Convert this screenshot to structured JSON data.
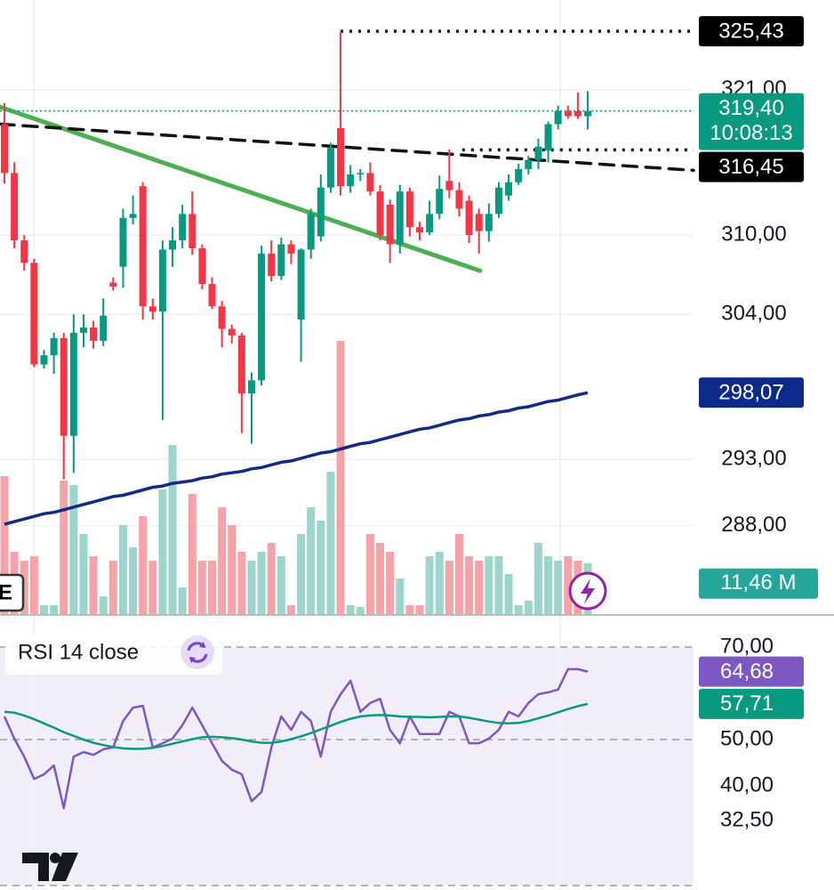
{
  "chart_data": [
    {
      "type": "candlestick",
      "xlim": [
        -0.45,
        69.7
      ],
      "ylim": [
        281.3,
        327.8
      ],
      "yticks": [
        {
          "value": 321,
          "label": "321,00"
        },
        {
          "value": 310,
          "label": "310,00"
        },
        {
          "value": 304,
          "label": "304,00"
        },
        {
          "value": 293,
          "label": "293,00"
        },
        {
          "value": 288,
          "label": "288,00"
        }
      ],
      "grid": true,
      "up_color": "#089981",
      "down_color": "#f23645",
      "open": [
        318.4,
        314.7,
        309.6,
        307.9,
        300.2,
        300.9,
        302.2,
        294.8,
        302.6,
        303.0,
        302.0,
        306.4,
        307.6,
        311.3,
        313.7,
        304.6,
        304.2,
        308.9,
        309.6,
        311.6,
        309.0,
        306.3,
        304.6,
        302.9,
        302.4,
        298.0,
        299.0,
        308.6,
        306.9,
        309.3,
        303.6,
        308.9,
        309.9,
        313.6,
        318.1,
        313.7,
        314.6,
        314.7,
        313.3,
        312.3,
        309.3,
        313.3,
        310.6,
        310.2,
        311.6,
        314.1,
        313.4,
        312.6,
        311.6,
        310.3,
        311.6,
        313.0,
        314.0,
        315.0,
        315.7,
        316.4,
        318.4,
        319.4,
        319.4,
        319.0
      ],
      "high": [
        320.0,
        315.5,
        310.0,
        308.2,
        301.3,
        302.6,
        302.6,
        304.0,
        304.0,
        303.5,
        305.2,
        306.8,
        312.0,
        313.0,
        314.0,
        305.2,
        309.6,
        310.6,
        312.3,
        313.3,
        309.3,
        306.8,
        305.0,
        303.2,
        302.6,
        299.6,
        309.2,
        309.6,
        309.8,
        309.6,
        309.0,
        312.0,
        314.6,
        317.0,
        325.43,
        315.3,
        315.0,
        315.5,
        313.8,
        312.7,
        313.8,
        313.6,
        311.0,
        312.6,
        314.5,
        316.5,
        314.0,
        313.0,
        312.0,
        312.4,
        314.0,
        314.6,
        315.4,
        316.0,
        317.3,
        318.6,
        319.8,
        319.8,
        320.8,
        320.9
      ],
      "low": [
        313.9,
        309.0,
        307.3,
        300.0,
        299.9,
        299.5,
        291.5,
        292.0,
        301.5,
        301.4,
        301.6,
        305.8,
        306.0,
        310.8,
        303.6,
        303.6,
        296.0,
        307.6,
        309.0,
        308.5,
        305.9,
        304.4,
        301.5,
        301.8,
        295.0,
        294.2,
        298.6,
        306.5,
        306.6,
        307.8,
        300.4,
        308.2,
        309.5,
        313.2,
        313.0,
        313.2,
        314.1,
        313.0,
        309.6,
        307.9,
        308.6,
        309.9,
        309.6,
        310.0,
        311.2,
        312.8,
        311.4,
        309.4,
        308.6,
        309.5,
        311.3,
        312.6,
        313.8,
        314.6,
        315.0,
        315.5,
        318.0,
        318.8,
        318.8,
        318.0
      ],
      "close": [
        314.7,
        309.6,
        307.9,
        300.2,
        300.9,
        302.2,
        294.8,
        302.6,
        303.0,
        302.0,
        303.9,
        306.1,
        311.3,
        311.6,
        304.6,
        304.2,
        308.9,
        309.6,
        311.6,
        309.0,
        306.3,
        304.6,
        302.9,
        302.4,
        298.0,
        299.0,
        308.6,
        306.9,
        309.3,
        308.6,
        308.9,
        311.6,
        313.6,
        316.6,
        313.7,
        314.6,
        314.7,
        313.3,
        310.0,
        309.3,
        313.3,
        310.6,
        310.2,
        311.6,
        313.5,
        313.4,
        312.0,
        310.0,
        310.3,
        311.6,
        313.6,
        314.0,
        315.0,
        315.7,
        316.7,
        318.4,
        319.4,
        319.0,
        319.0,
        319.4
      ],
      "volume": {
        "ylim": [
          0,
          62
        ],
        "up_color": "#9dd5cc",
        "down_color": "#f5a3a8",
        "values": [
          31,
          14,
          12,
          13,
          2,
          2,
          30,
          29,
          18,
          13,
          4,
          12,
          20,
          15,
          22,
          12,
          28,
          38,
          6,
          27,
          12,
          12,
          24,
          20,
          14,
          12,
          14,
          16,
          13,
          2,
          18,
          24,
          21,
          32,
          61.4,
          2,
          1.6,
          18,
          16,
          14,
          8,
          2,
          2,
          13,
          14,
          12,
          18,
          13,
          12,
          13,
          13,
          9,
          2,
          3,
          16,
          13,
          12,
          13,
          12,
          11.46
        ],
        "badge": {
          "value": 11.46,
          "label": "11,46 M",
          "color": "#26a69a"
        }
      },
      "ma": {
        "color": "#152a86",
        "values": [
          288.1,
          288.3,
          288.5,
          288.7,
          288.9,
          289.0,
          289.2,
          289.4,
          289.6,
          289.8,
          290.0,
          290.2,
          290.3,
          290.5,
          290.7,
          290.9,
          291.0,
          291.2,
          291.3,
          291.4,
          291.6,
          291.7,
          291.9,
          292.0,
          292.1,
          292.3,
          292.4,
          292.6,
          292.8,
          292.9,
          293.1,
          293.3,
          293.5,
          293.6,
          293.8,
          294.0,
          294.2,
          294.3,
          294.5,
          294.7,
          294.9,
          295.1,
          295.3,
          295.4,
          295.6,
          295.8,
          296.0,
          296.1,
          296.3,
          296.4,
          296.6,
          296.7,
          296.9,
          297.0,
          297.2,
          297.4,
          297.5,
          297.7,
          297.9,
          298.07
        ]
      },
      "trendlines": [
        {
          "color": "#4caf50",
          "dash": false,
          "points": [
            [
              -0.45,
              319.7
            ],
            [
              48.1,
              307.3
            ]
          ]
        },
        {
          "color": "#111111",
          "dash": true,
          "points": [
            [
              -0.45,
              318.4
            ],
            [
              69.7,
              314.9
            ]
          ]
        }
      ],
      "price_labels": [
        {
          "value": 325.43,
          "label": "325,43",
          "color": "#000000",
          "line_from": 34,
          "line_color": "#111111"
        },
        {
          "value": 319.4,
          "label": "319,40",
          "time": "10:08:13",
          "color": "#089981",
          "line_from": -0.45,
          "line_color": "#089981"
        },
        {
          "value": 316.45,
          "label": "316,45",
          "color": "#000000",
          "line_from": 46.3,
          "line_color": "#111111"
        },
        {
          "value": 298.07,
          "label": "298,07",
          "color": "#0d2a8a"
        }
      ],
      "corner_label": "E"
    },
    {
      "type": "line",
      "title": "RSI 14 close",
      "xlim": [
        -0.45,
        69.7
      ],
      "ylim": [
        17.5,
        76.15
      ],
      "yticks": [
        {
          "value": 70,
          "label": "70,00"
        },
        {
          "value": 50,
          "label": "50,00"
        },
        {
          "value": 40,
          "label": "40,00"
        },
        {
          "value": 32.5,
          "label": "32,50"
        }
      ],
      "bands": [
        70,
        50
      ],
      "series": [
        {
          "color": "#7e57c2",
          "values": [
            55.0,
            50.2,
            46.3,
            41.5,
            42.5,
            44.4,
            35.2,
            46.3,
            47.3,
            46.7,
            47.9,
            48.3,
            54.0,
            56.9,
            57.3,
            48.3,
            49.2,
            50.2,
            53.1,
            56.9,
            53.1,
            49.2,
            45.4,
            43.5,
            42.5,
            36.7,
            38.7,
            48.3,
            55.0,
            52.1,
            56.0,
            54.0,
            46.3,
            56.0,
            59.8,
            62.7,
            56.0,
            57.9,
            58.8,
            52.1,
            49.2,
            55.0,
            51.2,
            51.2,
            51.2,
            56.0,
            55.0,
            49.2,
            49.2,
            50.2,
            52.1,
            56.0,
            55.0,
            57.9,
            59.8,
            60.2,
            60.8,
            65.2,
            65.2,
            64.68
          ]
        },
        {
          "color": "#089981",
          "values": [
            56.0,
            55.8,
            55.2,
            54.4,
            53.5,
            52.6,
            51.6,
            50.8,
            50.0,
            49.3,
            48.8,
            48.4,
            48.1,
            48.0,
            48.0,
            48.2,
            48.6,
            49.1,
            49.6,
            50.1,
            50.5,
            50.6,
            50.5,
            50.3,
            50.0,
            49.6,
            49.3,
            49.3,
            49.6,
            50.1,
            50.7,
            51.4,
            52.2,
            53.0,
            53.8,
            54.5,
            55.0,
            55.2,
            55.3,
            55.2,
            55.0,
            54.9,
            54.9,
            54.8,
            54.9,
            55.0,
            55.0,
            54.7,
            54.3,
            53.9,
            53.6,
            53.5,
            53.6,
            54.0,
            54.6,
            55.2,
            55.9,
            56.6,
            57.2,
            57.71
          ]
        }
      ],
      "value_badges": [
        {
          "value": 64.68,
          "label": "64,68",
          "color": "#7e57c2"
        },
        {
          "value": 57.71,
          "label": "57,71",
          "color": "#089981"
        }
      ]
    }
  ]
}
